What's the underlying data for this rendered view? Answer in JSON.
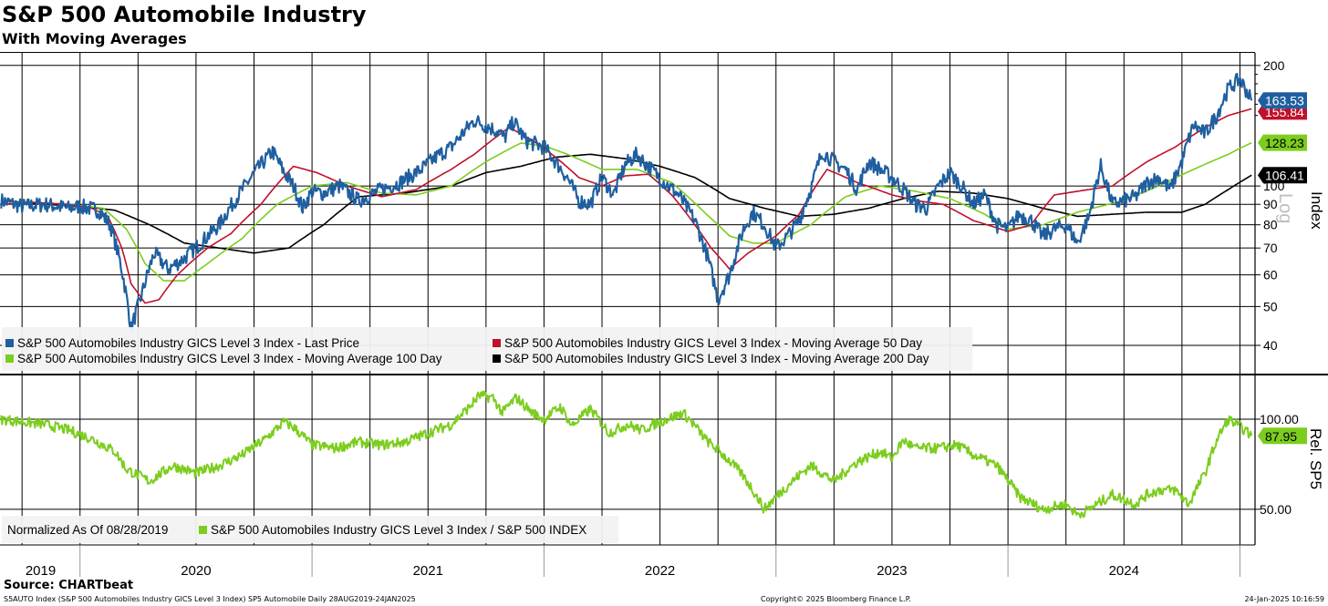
{
  "title": "S&P 500 Automobile Industry",
  "subtitle": "With Moving Averages",
  "source": "Source: CHARTbeat",
  "footer": {
    "left": "S5AUTO Index (S&P 500 Automobiles Industry GICS Level 3 Index) SP5 Automobile  Daily 28AUG2019-24JAN2025",
    "center": "Copyright© 2025 Bloomberg Finance L.P.",
    "right": "24-Jan-2025 10:16:59"
  },
  "colors": {
    "price": "#1f5fa0",
    "ma50": "#c0102a",
    "ma100": "#7ccd1e",
    "ma200": "#000000",
    "rel": "#7ccd1e"
  },
  "chart_data": [
    {
      "type": "line",
      "scale": "log",
      "ylabel": "Index",
      "ylabel2": "Log",
      "ylim": [
        34,
        215
      ],
      "yticks": [
        40,
        50,
        60,
        70,
        80,
        90,
        100,
        200
      ],
      "ytick_labels": [
        "40",
        "50",
        "60",
        "70",
        "80",
        "90",
        "100",
        "200"
      ],
      "x_range": [
        2019.655,
        2025.065
      ],
      "series": [
        {
          "name": "S&P 500 Automobiles Industry GICS Level 3 Index - Last Price",
          "color": "#1f5fa0",
          "last": "163.53",
          "x": [
            2019.66,
            2019.75,
            2019.85,
            2019.95,
            2020.0,
            2020.08,
            2020.13,
            2020.18,
            2020.22,
            2020.26,
            2020.32,
            2020.38,
            2020.45,
            2020.52,
            2020.6,
            2020.7,
            2020.78,
            2020.83,
            2020.88,
            2020.92,
            2020.96,
            2021.0,
            2021.05,
            2021.12,
            2021.2,
            2021.3,
            2021.38,
            2021.47,
            2021.55,
            2021.6,
            2021.7,
            2021.8,
            2021.83,
            2021.87,
            2021.92,
            2022.0,
            2022.05,
            2022.1,
            2022.15,
            2022.2,
            2022.25,
            2022.3,
            2022.35,
            2022.4,
            2022.45,
            2022.52,
            2022.58,
            2022.65,
            2022.7,
            2022.75,
            2022.8,
            2022.86,
            2022.9,
            2022.95,
            2023.0,
            2023.05,
            2023.1,
            2023.15,
            2023.2,
            2023.25,
            2023.3,
            2023.35,
            2023.4,
            2023.45,
            2023.5,
            2023.55,
            2023.6,
            2023.65,
            2023.7,
            2023.75,
            2023.8,
            2023.85,
            2023.9,
            2023.95,
            2024.0,
            2024.05,
            2024.1,
            2024.15,
            2024.2,
            2024.25,
            2024.3,
            2024.35,
            2024.4,
            2024.45,
            2024.5,
            2024.55,
            2024.6,
            2024.65,
            2024.7,
            2024.75,
            2024.8,
            2024.85,
            2024.9,
            2024.95,
            2025.0,
            2025.05
          ],
          "y": [
            92,
            89,
            90,
            88,
            89,
            87,
            80,
            62,
            44,
            52,
            68,
            62,
            66,
            72,
            80,
            98,
            113,
            122,
            108,
            100,
            88,
            97,
            96,
            100,
            92,
            98,
            102,
            110,
            120,
            125,
            146,
            137,
            132,
            145,
            130,
            125,
            115,
            105,
            92,
            90,
            105,
            95,
            113,
            120,
            112,
            102,
            95,
            82,
            68,
            52,
            60,
            78,
            86,
            80,
            70,
            75,
            82,
            98,
            122,
            115,
            110,
            98,
            115,
            110,
            105,
            98,
            90,
            88,
            100,
            108,
            100,
            90,
            95,
            80,
            78,
            85,
            82,
            75,
            78,
            80,
            72,
            84,
            112,
            90,
            92,
            94,
            102,
            105,
            98,
            115,
            142,
            135,
            150,
            175,
            185,
            163.53
          ]
        },
        {
          "name": "S&P 500 Automobiles Industry GICS Level 3 Index - Moving Average 50 Day",
          "color": "#c0102a",
          "last": "155.84",
          "x": [
            2019.66,
            2019.8,
            2019.95,
            2020.05,
            2020.12,
            2020.18,
            2020.22,
            2020.28,
            2020.34,
            2020.42,
            2020.55,
            2020.65,
            2020.78,
            2020.92,
            2021.02,
            2021.15,
            2021.3,
            2021.45,
            2021.6,
            2021.7,
            2021.85,
            2021.95,
            2022.05,
            2022.15,
            2022.25,
            2022.35,
            2022.45,
            2022.55,
            2022.65,
            2022.72,
            2022.8,
            2022.88,
            2023.0,
            2023.1,
            2023.22,
            2023.35,
            2023.5,
            2023.6,
            2023.72,
            2023.85,
            2024.0,
            2024.1,
            2024.2,
            2024.3,
            2024.45,
            2024.6,
            2024.72,
            2024.85,
            2024.95,
            2025.05
          ],
          "y": [
            90,
            91,
            90,
            88,
            84,
            70,
            57,
            51,
            52,
            60,
            70,
            76,
            90,
            112,
            108,
            100,
            94,
            98,
            110,
            120,
            140,
            130,
            118,
            105,
            100,
            106,
            107,
            95,
            80,
            70,
            62,
            68,
            75,
            85,
            110,
            102,
            95,
            92,
            90,
            82,
            77,
            80,
            95,
            97,
            100,
            115,
            125,
            140,
            150,
            155.84
          ]
        },
        {
          "name": "S&P 500 Automobiles Industry GICS Level 3 Index - Moving Average 100 Day",
          "color": "#7ccd1e",
          "last": "128.23",
          "x": [
            2019.66,
            2019.8,
            2019.95,
            2020.1,
            2020.2,
            2020.28,
            2020.36,
            2020.45,
            2020.55,
            2020.7,
            2020.85,
            2021.0,
            2021.15,
            2021.3,
            2021.45,
            2021.6,
            2021.75,
            2021.9,
            2022.0,
            2022.1,
            2022.25,
            2022.4,
            2022.55,
            2022.7,
            2022.8,
            2022.9,
            2023.0,
            2023.15,
            2023.3,
            2023.45,
            2023.6,
            2023.75,
            2023.9,
            2024.0,
            2024.15,
            2024.3,
            2024.5,
            2024.65,
            2024.8,
            2024.95,
            2025.05
          ],
          "y": [
            92,
            91,
            90,
            88,
            78,
            64,
            58,
            58,
            64,
            74,
            90,
            100,
            102,
            96,
            95,
            100,
            115,
            128,
            126,
            120,
            110,
            110,
            102,
            85,
            75,
            72,
            72,
            80,
            94,
            100,
            97,
            93,
            85,
            78,
            80,
            86,
            92,
            100,
            110,
            120,
            128.23
          ]
        },
        {
          "name": "S&P 500 Automobiles Industry GICS Level 3 Index - Moving Average 200 Day",
          "color": "#000000",
          "last": "106.41",
          "x": [
            2019.66,
            2019.85,
            2020.0,
            2020.15,
            2020.3,
            2020.45,
            2020.6,
            2020.75,
            2020.9,
            2021.05,
            2021.2,
            2021.4,
            2021.6,
            2021.75,
            2021.9,
            2022.05,
            2022.2,
            2022.35,
            2022.5,
            2022.65,
            2022.8,
            2022.95,
            2023.1,
            2023.25,
            2023.4,
            2023.55,
            2023.7,
            2023.85,
            2024.0,
            2024.15,
            2024.3,
            2024.45,
            2024.6,
            2024.75,
            2024.85,
            2024.95,
            2025.05
          ],
          "y": [
            92,
            90,
            89,
            87,
            80,
            72,
            70,
            68,
            70,
            80,
            94,
            96,
            100,
            108,
            112,
            118,
            120,
            117,
            112,
            105,
            93,
            88,
            84,
            85,
            88,
            93,
            97,
            96,
            93,
            88,
            84,
            85,
            86,
            86,
            90,
            98,
            106.41
          ]
        }
      ],
      "legend": [
        "S&P 500 Automobiles Industry GICS Level 3 Index - Last Price",
        "S&P 500 Automobiles Industry GICS Level 3 Index - Moving Average 50 Day",
        "S&P 500 Automobiles Industry GICS Level 3 Index - Moving Average 100 Day",
        "S&P 500 Automobiles Industry GICS Level 3 Index - Moving Average 200 Day"
      ]
    },
    {
      "type": "line",
      "scale": "log",
      "ylabel": "Rel. SP5",
      "ylim": [
        38,
        140
      ],
      "yticks": [
        50,
        100
      ],
      "ytick_labels": [
        "50.00",
        "100.00"
      ],
      "x_range": [
        2019.655,
        2025.065
      ],
      "series": [
        {
          "name": "S&P 500 Automobiles Industry GICS Level 3 Index / S&P 500 INDEX",
          "color": "#7ccd1e",
          "last": "87.95",
          "x": [
            2019.66,
            2019.75,
            2019.85,
            2019.95,
            2020.05,
            2020.15,
            2020.2,
            2020.3,
            2020.4,
            2020.5,
            2020.6,
            2020.7,
            2020.8,
            2020.88,
            2020.92,
            2021.0,
            2021.1,
            2021.2,
            2021.3,
            2021.4,
            2021.5,
            2021.6,
            2021.68,
            2021.72,
            2021.78,
            2021.82,
            2021.88,
            2021.95,
            2022.0,
            2022.07,
            2022.12,
            2022.2,
            2022.28,
            2022.36,
            2022.42,
            2022.5,
            2022.6,
            2022.7,
            2022.78,
            2022.85,
            2022.95,
            2023.05,
            2023.15,
            2023.25,
            2023.35,
            2023.45,
            2023.5,
            2023.55,
            2023.6,
            2023.7,
            2023.78,
            2023.85,
            2023.95,
            2024.05,
            2024.15,
            2024.25,
            2024.3,
            2024.35,
            2024.45,
            2024.55,
            2024.6,
            2024.65,
            2024.72,
            2024.78,
            2024.85,
            2024.9,
            2024.95,
            2025.02,
            2025.05
          ],
          "y": [
            100,
            98,
            96,
            92,
            86,
            78,
            68,
            62,
            70,
            66,
            70,
            76,
            86,
            98,
            94,
            82,
            80,
            84,
            82,
            84,
            90,
            96,
            110,
            120,
            118,
            105,
            118,
            105,
            100,
            110,
            95,
            108,
            90,
            96,
            92,
            98,
            105,
            85,
            75,
            66,
            50,
            60,
            70,
            62,
            72,
            78,
            74,
            85,
            80,
            80,
            82,
            76,
            70,
            55,
            50,
            52,
            48,
            50,
            56,
            52,
            56,
            58,
            58,
            52,
            66,
            85,
            100,
            92,
            87.95
          ]
        }
      ],
      "legend": [
        "Normalized As Of 08/28/2019",
        "S&P 500 Automobiles Industry GICS Level 3 Index / S&P 500 INDEX"
      ]
    }
  ],
  "xaxis": {
    "year_labels": [
      "2019",
      "2020",
      "2021",
      "2022",
      "2023",
      "2024"
    ],
    "year_label_x": [
      2019.83,
      2020.5,
      2021.5,
      2022.5,
      2023.5,
      2024.5
    ]
  }
}
